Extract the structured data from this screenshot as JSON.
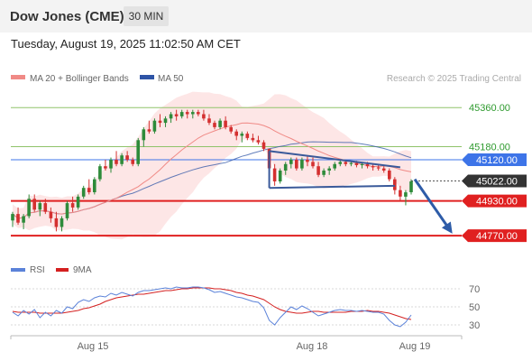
{
  "header": {
    "instrument": "Dow Jones (CME)",
    "timeframe": "30 MIN"
  },
  "date_line": "Tuesday, August 19, 2025 11:02:50 AM CET",
  "legend": {
    "ma20_label": "MA 20 + Bollinger Bands",
    "ma50_label": "MA 50",
    "research": "Research © 2025 Trading Central"
  },
  "rsi_legend": {
    "rsi_label": "RSI",
    "ma_label": "9MA"
  },
  "colors": {
    "ma20": "#f08a86",
    "ma50": "#2e54a6",
    "bollinger_fill": "#fde2e2",
    "bull_candle": "#2e8b3a",
    "bear_candle": "#d43030",
    "resistance": "#90c36a",
    "current_price_bg": "#333333",
    "pivot": "#3d74e8",
    "support": "#e02020",
    "rsi": "#5b82d9",
    "rsi_ma": "#d42020",
    "trendline": "#3a5a9a"
  },
  "chart_data": [
    {
      "type": "candlestick",
      "timeframe": "30 MIN",
      "ylim": [
        44700,
        45440
      ],
      "x_tick_labels": [
        "Aug 15",
        "Aug 18",
        "Aug 19"
      ],
      "series": [
        {
          "name": "MA 20 + Bollinger Bands"
        },
        {
          "name": "MA 50"
        }
      ],
      "current_price": 45022.0,
      "levels": [
        {
          "value": 45360.0,
          "label": "45360.00",
          "kind": "resistance"
        },
        {
          "value": 45180.0,
          "label": "45180.00",
          "kind": "resistance"
        },
        {
          "value": 45120.0,
          "label": "45120.00",
          "kind": "pivot"
        },
        {
          "value": 45022.0,
          "label": "45022.00",
          "kind": "current"
        },
        {
          "value": 44930.0,
          "label": "44930.00",
          "kind": "support"
        },
        {
          "value": 44770.0,
          "label": "44770.00",
          "kind": "support"
        }
      ],
      "ohlc": [
        [
          44840,
          44880,
          44810,
          44870
        ],
        [
          44870,
          44900,
          44820,
          44830
        ],
        [
          44830,
          44870,
          44800,
          44860
        ],
        [
          44860,
          44960,
          44850,
          44940
        ],
        [
          44940,
          44960,
          44880,
          44890
        ],
        [
          44890,
          44930,
          44860,
          44920
        ],
        [
          44920,
          44940,
          44870,
          44880
        ],
        [
          44880,
          44900,
          44830,
          44850
        ],
        [
          44850,
          44880,
          44790,
          44810
        ],
        [
          44810,
          44860,
          44790,
          44850
        ],
        [
          44850,
          44930,
          44840,
          44920
        ],
        [
          44920,
          44950,
          44880,
          44900
        ],
        [
          44900,
          44960,
          44890,
          44950
        ],
        [
          44950,
          45000,
          44940,
          44990
        ],
        [
          44990,
          45030,
          44960,
          44970
        ],
        [
          44970,
          45040,
          44960,
          45030
        ],
        [
          45030,
          45100,
          45020,
          45090
        ],
        [
          45090,
          45120,
          45070,
          45080
        ],
        [
          45080,
          45130,
          45060,
          45120
        ],
        [
          45120,
          45160,
          45090,
          45100
        ],
        [
          45100,
          45150,
          45090,
          45140
        ],
        [
          45140,
          45160,
          45110,
          45120
        ],
        [
          45120,
          45130,
          45090,
          45100
        ],
        [
          45100,
          45220,
          45090,
          45210
        ],
        [
          45210,
          45270,
          45180,
          45260
        ],
        [
          45260,
          45300,
          45240,
          45250
        ],
        [
          45250,
          45310,
          45240,
          45300
        ],
        [
          45300,
          45330,
          45270,
          45290
        ],
        [
          45290,
          45320,
          45270,
          45310
        ],
        [
          45310,
          45340,
          45290,
          45330
        ],
        [
          45330,
          45350,
          45300,
          45320
        ],
        [
          45320,
          45350,
          45310,
          45340
        ],
        [
          45340,
          45350,
          45310,
          45330
        ],
        [
          45330,
          45350,
          45310,
          45340
        ],
        [
          45340,
          45350,
          45320,
          45330
        ],
        [
          45330,
          45350,
          45300,
          45310
        ],
        [
          45310,
          45330,
          45280,
          45290
        ],
        [
          45290,
          45300,
          45260,
          45270
        ],
        [
          45270,
          45310,
          45260,
          45300
        ],
        [
          45300,
          45320,
          45260,
          45270
        ],
        [
          45270,
          45280,
          45240,
          45250
        ],
        [
          45250,
          45260,
          45210,
          45230
        ],
        [
          45230,
          45250,
          45200,
          45240
        ],
        [
          45240,
          45250,
          45210,
          45220
        ],
        [
          45220,
          45240,
          45200,
          45210
        ],
        [
          45210,
          45230,
          45190,
          45200
        ],
        [
          45200,
          45210,
          45160,
          45170
        ],
        [
          45170,
          45170,
          45060,
          45080
        ],
        [
          45080,
          45100,
          45000,
          45020
        ],
        [
          45020,
          45080,
          45010,
          45070
        ],
        [
          45070,
          45110,
          45050,
          45100
        ],
        [
          45100,
          45130,
          45080,
          45120
        ],
        [
          45120,
          45130,
          45070,
          45080
        ],
        [
          45080,
          45130,
          45070,
          45120
        ],
        [
          45120,
          45140,
          45090,
          45110
        ],
        [
          45110,
          45130,
          45080,
          45090
        ],
        [
          45090,
          45110,
          45040,
          45050
        ],
        [
          45050,
          45080,
          45040,
          45070
        ],
        [
          45070,
          45090,
          45050,
          45080
        ],
        [
          45080,
          45110,
          45070,
          45100
        ],
        [
          45100,
          45120,
          45090,
          45110
        ],
        [
          45110,
          45120,
          45090,
          45100
        ],
        [
          45100,
          45110,
          45090,
          45105
        ],
        [
          45105,
          45115,
          45085,
          45095
        ],
        [
          45095,
          45110,
          45080,
          45100
        ],
        [
          45100,
          45110,
          45080,
          45090
        ],
        [
          45090,
          45100,
          45070,
          45085
        ],
        [
          45085,
          45100,
          45070,
          45080
        ],
        [
          45080,
          45090,
          45060,
          45070
        ],
        [
          45070,
          45080,
          45020,
          45030
        ],
        [
          45030,
          45040,
          44960,
          44980
        ],
        [
          44980,
          45000,
          44930,
          44950
        ],
        [
          44950,
          44980,
          44910,
          44970
        ],
        [
          44970,
          45030,
          44960,
          45020
        ]
      ]
    },
    {
      "type": "line",
      "title": "RSI",
      "ylim": [
        20,
        80
      ],
      "y_tick_labels": [
        "70",
        "50",
        "30"
      ],
      "series": [
        {
          "name": "RSI",
          "values": [
            44,
            40,
            46,
            42,
            47,
            38,
            44,
            40,
            46,
            43,
            50,
            48,
            55,
            58,
            56,
            60,
            62,
            61,
            65,
            63,
            66,
            64,
            62,
            66,
            68,
            68,
            69,
            70,
            71,
            70,
            72,
            71,
            71,
            72,
            72,
            71,
            69,
            66,
            67,
            65,
            63,
            61,
            60,
            58,
            56,
            55,
            49,
            35,
            30,
            38,
            44,
            50,
            47,
            51,
            48,
            44,
            40,
            42,
            44,
            46,
            47,
            46,
            46,
            45,
            46,
            45,
            44,
            44,
            42,
            35,
            30,
            28,
            33,
            41
          ]
        },
        {
          "name": "9MA",
          "values": [
            45,
            44,
            44,
            44,
            44,
            43,
            43,
            43,
            43,
            43,
            44,
            45,
            46,
            48,
            49,
            51,
            53,
            56,
            58,
            60,
            61,
            62,
            63,
            64,
            64,
            65,
            66,
            67,
            68,
            68,
            69,
            70,
            70,
            71,
            71,
            71,
            71,
            70,
            70,
            69,
            68,
            66,
            65,
            63,
            62,
            60,
            58,
            54,
            50,
            47,
            45,
            44,
            43,
            43,
            44,
            45,
            45,
            44,
            44,
            44,
            44,
            44,
            45,
            45,
            45,
            46,
            45,
            45,
            44,
            43,
            41,
            39,
            37,
            36
          ]
        }
      ]
    }
  ]
}
